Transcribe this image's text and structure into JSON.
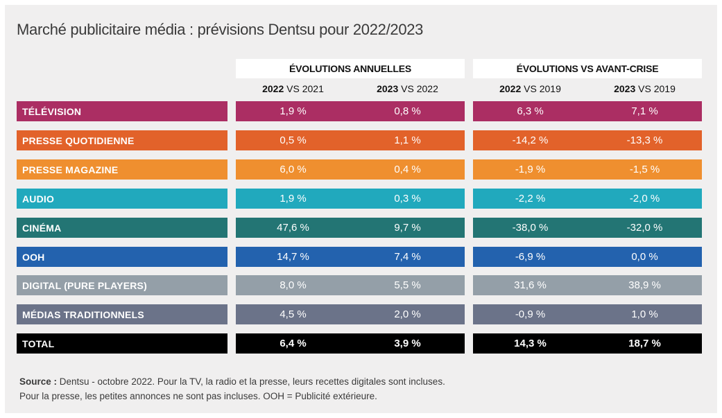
{
  "chart_data": {
    "type": "table",
    "title": "Marché publicitaire média : prévisions Dentsu pour 2022/2023",
    "column_groups": [
      {
        "label": "ÉVOLUTIONS ANNUELLES",
        "columns": [
          {
            "bold": "2022",
            "rest": " VS 2021"
          },
          {
            "bold": "2023",
            "rest": " VS 2022"
          }
        ]
      },
      {
        "label": "ÉVOLUTIONS VS AVANT-CRISE",
        "columns": [
          {
            "bold": "2022",
            "rest": " VS 2019"
          },
          {
            "bold": "2023",
            "rest": " VS 2019"
          }
        ]
      }
    ],
    "rows": [
      {
        "label": "TÉLÉVISION",
        "color": "#ab2e63",
        "values": [
          "1,9 %",
          "0,8 %",
          "6,3 %",
          "7,1 %"
        ]
      },
      {
        "label": "PRESSE QUOTIDIENNE",
        "color": "#e2622a",
        "values": [
          "0,5 %",
          "1,1 %",
          "-14,2 %",
          "-13,3 %"
        ]
      },
      {
        "label": "PRESSE MAGAZINE",
        "color": "#ef8f2f",
        "values": [
          "6,0 %",
          "0,4 %",
          "-1,9 %",
          "-1,5 %"
        ]
      },
      {
        "label": "AUDIO",
        "color": "#21a9bd",
        "values": [
          "1,9 %",
          "0,3 %",
          "-2,2 %",
          "-2,0 %"
        ]
      },
      {
        "label": "CINÉMA",
        "color": "#237574",
        "values": [
          "47,6 %",
          "9,7 %",
          "-38,0 %",
          "-32,0 %"
        ]
      },
      {
        "label": "OOH",
        "color": "#2362ae",
        "values": [
          "14,7 %",
          "7,4 %",
          "-6,9 %",
          "0,0 %"
        ]
      },
      {
        "label": "DIGITAL (PURE PLAYERS)",
        "color": "#949fa8",
        "values": [
          "8,0 %",
          "5,5 %",
          "31,6 %",
          "38,9 %"
        ]
      },
      {
        "label": "MÉDIAS TRADITIONNELS",
        "color": "#6b7389",
        "values": [
          "4,5 %",
          "2,0 %",
          "-0,9 %",
          "1,0 %"
        ]
      },
      {
        "label": "TOTAL",
        "color": "#000000",
        "values": [
          "6,4 %",
          "3,9 %",
          "14,3 %",
          "18,7 %"
        ],
        "total": true
      }
    ]
  },
  "source": {
    "label": "Source :",
    "line1": " Dentsu - octobre 2022. Pour la TV, la radio et la presse, leurs recettes digitales sont incluses.",
    "line2": "Pour la presse, les petites annonces ne sont pas incluses. OOH = Publicité extérieure."
  }
}
